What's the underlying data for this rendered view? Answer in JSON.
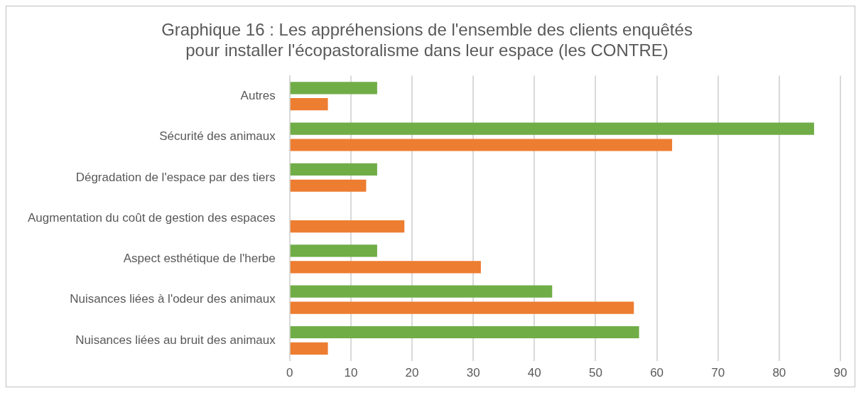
{
  "chart_data": {
    "type": "bar",
    "orientation": "horizontal",
    "title": "Graphique 16 : Les appréhensions de l'ensemble des clients enquêtés pour installer l'écopastoralisme dans leur espace (les CONTRE)",
    "categories": [
      "Autres",
      "Sécurité des animaux",
      "Dégradation de l'espace par des tiers",
      "Augmentation du coût de gestion des espaces",
      "Aspect esthétique de l'herbe",
      "Nuisances liées à l'odeur des animaux",
      "Nuisances liées au bruit des animaux"
    ],
    "series": [
      {
        "color": "#70ad47",
        "values": [
          14.3,
          85.7,
          14.3,
          0,
          14.3,
          42.9,
          57.1
        ]
      },
      {
        "color": "#ed7d31",
        "values": [
          6.25,
          62.5,
          12.5,
          18.75,
          31.25,
          56.25,
          6.25
        ]
      }
    ],
    "xlim": [
      0,
      90
    ],
    "xticks": [
      0,
      10,
      20,
      30,
      40,
      50,
      60,
      70,
      80,
      90
    ],
    "grid": "x",
    "legend": false
  }
}
